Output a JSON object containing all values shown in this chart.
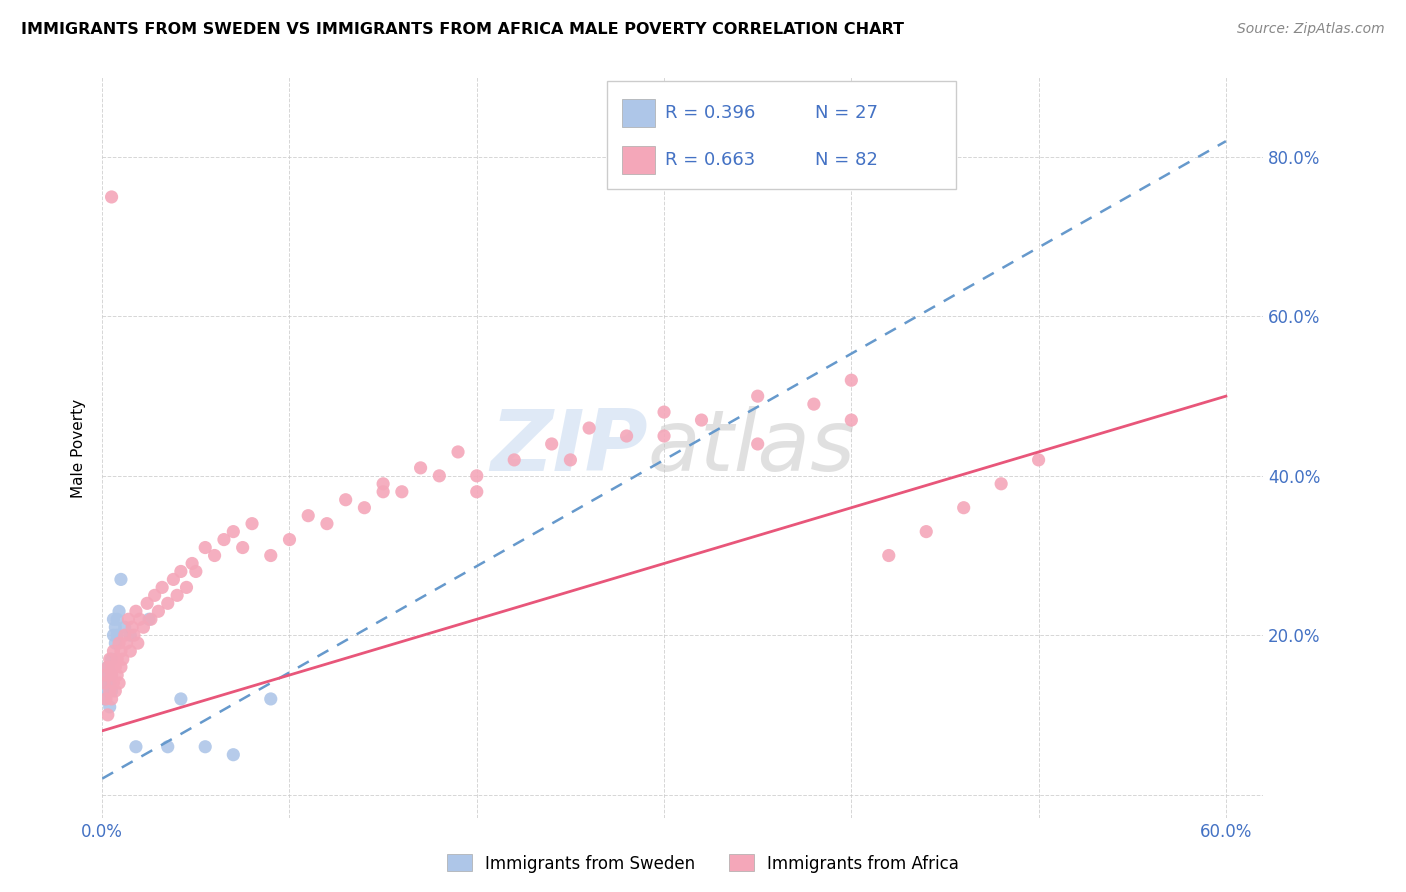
{
  "title": "IMMIGRANTS FROM SWEDEN VS IMMIGRANTS FROM AFRICA MALE POVERTY CORRELATION CHART",
  "source": "Source: ZipAtlas.com",
  "ylabel": "Male Poverty",
  "xlim": [
    0.0,
    0.62
  ],
  "ylim": [
    -0.03,
    0.9
  ],
  "R_sweden": 0.396,
  "N_sweden": 27,
  "R_africa": 0.663,
  "N_africa": 82,
  "legend_label_sweden": "Immigrants from Sweden",
  "legend_label_africa": "Immigrants from Africa",
  "watermark_zip": "ZIP",
  "watermark_atlas": "atlas",
  "sweden_fill_color": "#aec6e8",
  "africa_fill_color": "#f4a7b9",
  "sweden_line_color": "#6699cc",
  "africa_line_color": "#e8567a",
  "blue_text_color": "#4472c4",
  "grid_color": "#cccccc",
  "title_fontsize": 11.5,
  "axis_fontsize": 12,
  "sweden_x": [
    0.001,
    0.002,
    0.002,
    0.003,
    0.003,
    0.004,
    0.004,
    0.005,
    0.005,
    0.005,
    0.006,
    0.006,
    0.007,
    0.007,
    0.008,
    0.008,
    0.009,
    0.01,
    0.012,
    0.015,
    0.018,
    0.025,
    0.035,
    0.042,
    0.055,
    0.07,
    0.09
  ],
  "sweden_y": [
    0.12,
    0.14,
    0.13,
    0.15,
    0.16,
    0.14,
    0.11,
    0.15,
    0.17,
    0.13,
    0.2,
    0.22,
    0.21,
    0.19,
    0.22,
    0.2,
    0.23,
    0.27,
    0.21,
    0.2,
    0.06,
    0.22,
    0.06,
    0.12,
    0.06,
    0.05,
    0.12
  ],
  "africa_x": [
    0.001,
    0.002,
    0.002,
    0.003,
    0.003,
    0.004,
    0.004,
    0.005,
    0.005,
    0.005,
    0.006,
    0.006,
    0.007,
    0.007,
    0.008,
    0.008,
    0.009,
    0.009,
    0.01,
    0.01,
    0.011,
    0.012,
    0.013,
    0.014,
    0.015,
    0.016,
    0.017,
    0.018,
    0.019,
    0.02,
    0.022,
    0.024,
    0.026,
    0.028,
    0.03,
    0.032,
    0.035,
    0.038,
    0.04,
    0.042,
    0.045,
    0.048,
    0.05,
    0.055,
    0.06,
    0.065,
    0.07,
    0.075,
    0.08,
    0.09,
    0.1,
    0.11,
    0.12,
    0.13,
    0.14,
    0.15,
    0.16,
    0.17,
    0.18,
    0.19,
    0.2,
    0.22,
    0.24,
    0.26,
    0.28,
    0.3,
    0.32,
    0.35,
    0.38,
    0.4,
    0.42,
    0.44,
    0.46,
    0.48,
    0.5,
    0.35,
    0.4,
    0.15,
    0.2,
    0.25,
    0.3,
    0.005
  ],
  "africa_y": [
    0.14,
    0.12,
    0.15,
    0.1,
    0.16,
    0.13,
    0.17,
    0.15,
    0.12,
    0.16,
    0.14,
    0.18,
    0.16,
    0.13,
    0.17,
    0.15,
    0.19,
    0.14,
    0.18,
    0.16,
    0.17,
    0.2,
    0.19,
    0.22,
    0.18,
    0.21,
    0.2,
    0.23,
    0.19,
    0.22,
    0.21,
    0.24,
    0.22,
    0.25,
    0.23,
    0.26,
    0.24,
    0.27,
    0.25,
    0.28,
    0.26,
    0.29,
    0.28,
    0.31,
    0.3,
    0.32,
    0.33,
    0.31,
    0.34,
    0.3,
    0.32,
    0.35,
    0.34,
    0.37,
    0.36,
    0.39,
    0.38,
    0.41,
    0.4,
    0.43,
    0.38,
    0.42,
    0.44,
    0.46,
    0.45,
    0.48,
    0.47,
    0.5,
    0.49,
    0.52,
    0.3,
    0.33,
    0.36,
    0.39,
    0.42,
    0.44,
    0.47,
    0.38,
    0.4,
    0.42,
    0.45,
    0.75
  ]
}
